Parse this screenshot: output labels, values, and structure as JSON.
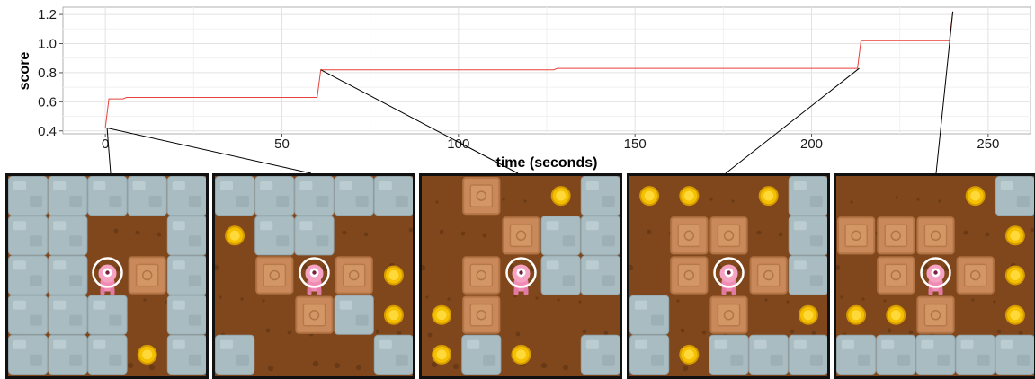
{
  "chart_data": {
    "type": "line",
    "title": "",
    "xlabel": "time (seconds)",
    "ylabel": "score",
    "xlim": [
      -12,
      262
    ],
    "ylim": [
      0.38,
      1.25
    ],
    "xticks": [
      0,
      50,
      100,
      150,
      200,
      250
    ],
    "yticks": [
      0.4,
      0.6,
      0.8,
      1.0,
      1.2
    ],
    "ytick_labels": [
      "0.4",
      "0.6",
      "0.8",
      "1.0",
      "1.2"
    ],
    "grid": true,
    "series": [
      {
        "color": "#e8403a",
        "x": [
          0,
          1,
          5,
          6,
          60,
          61,
          127,
          128,
          213,
          214,
          239,
          240
        ],
        "y": [
          0.42,
          0.62,
          0.62,
          0.63,
          0.63,
          0.82,
          0.82,
          0.83,
          0.83,
          1.02,
          1.02,
          1.22
        ]
      }
    ],
    "snapshot_times": [
      0.5,
      61,
      213.5,
      240
    ]
  },
  "panels": [
    {
      "player": [
        2,
        2
      ],
      "walls": [
        [
          0,
          0
        ],
        [
          1,
          0
        ],
        [
          2,
          0
        ],
        [
          3,
          0
        ],
        [
          4,
          0
        ],
        [
          0,
          1
        ],
        [
          1,
          1
        ],
        [
          4,
          1
        ],
        [
          0,
          2
        ],
        [
          1,
          2
        ],
        [
          4,
          2
        ],
        [
          0,
          3
        ],
        [
          1,
          3
        ],
        [
          2,
          3
        ],
        [
          4,
          3
        ],
        [
          0,
          4
        ],
        [
          1,
          4
        ],
        [
          2,
          4
        ],
        [
          4,
          4
        ]
      ],
      "boxes": [
        [
          3,
          2
        ]
      ],
      "coins": [
        [
          3,
          4
        ]
      ]
    },
    {
      "player": [
        2,
        2
      ],
      "walls": [
        [
          0,
          0
        ],
        [
          1,
          0
        ],
        [
          2,
          0
        ],
        [
          3,
          0
        ],
        [
          4,
          0
        ],
        [
          1,
          1
        ],
        [
          2,
          1
        ],
        [
          3,
          3
        ],
        [
          0,
          4
        ],
        [
          4,
          4
        ]
      ],
      "boxes": [
        [
          1,
          2
        ],
        [
          3,
          2
        ],
        [
          2,
          3
        ]
      ],
      "coins": [
        [
          0,
          1
        ],
        [
          4,
          2
        ],
        [
          4,
          3
        ]
      ]
    },
    {
      "player": [
        2,
        2
      ],
      "walls": [
        [
          4,
          0
        ],
        [
          3,
          1
        ],
        [
          4,
          1
        ],
        [
          3,
          2
        ],
        [
          4,
          2
        ],
        [
          1,
          4
        ],
        [
          4,
          4
        ]
      ],
      "boxes": [
        [
          1,
          0
        ],
        [
          2,
          1
        ],
        [
          1,
          2
        ],
        [
          1,
          3
        ]
      ],
      "coins": [
        [
          3,
          0
        ],
        [
          0,
          3
        ],
        [
          0,
          4
        ],
        [
          2,
          4
        ]
      ]
    },
    {
      "player": [
        2,
        2
      ],
      "walls": [
        [
          4,
          0
        ],
        [
          4,
          1
        ],
        [
          4,
          2
        ],
        [
          0,
          3
        ],
        [
          0,
          4
        ],
        [
          2,
          4
        ],
        [
          3,
          4
        ],
        [
          4,
          4
        ]
      ],
      "boxes": [
        [
          1,
          1
        ],
        [
          2,
          1
        ],
        [
          1,
          2
        ],
        [
          3,
          2
        ],
        [
          2,
          3
        ]
      ],
      "coins": [
        [
          0,
          0
        ],
        [
          1,
          0
        ],
        [
          3,
          0
        ],
        [
          4,
          3
        ],
        [
          1,
          4
        ]
      ]
    },
    {
      "player": [
        2,
        2
      ],
      "walls": [
        [
          4,
          0
        ],
        [
          0,
          4
        ],
        [
          1,
          4
        ],
        [
          2,
          4
        ],
        [
          3,
          4
        ],
        [
          4,
          4
        ]
      ],
      "boxes": [
        [
          0,
          1
        ],
        [
          1,
          1
        ],
        [
          2,
          1
        ],
        [
          1,
          2
        ],
        [
          3,
          2
        ],
        [
          2,
          3
        ]
      ],
      "coins": [
        [
          3,
          0
        ],
        [
          4,
          1
        ],
        [
          4,
          2
        ],
        [
          0,
          3
        ],
        [
          1,
          3
        ],
        [
          4,
          3
        ]
      ]
    }
  ]
}
